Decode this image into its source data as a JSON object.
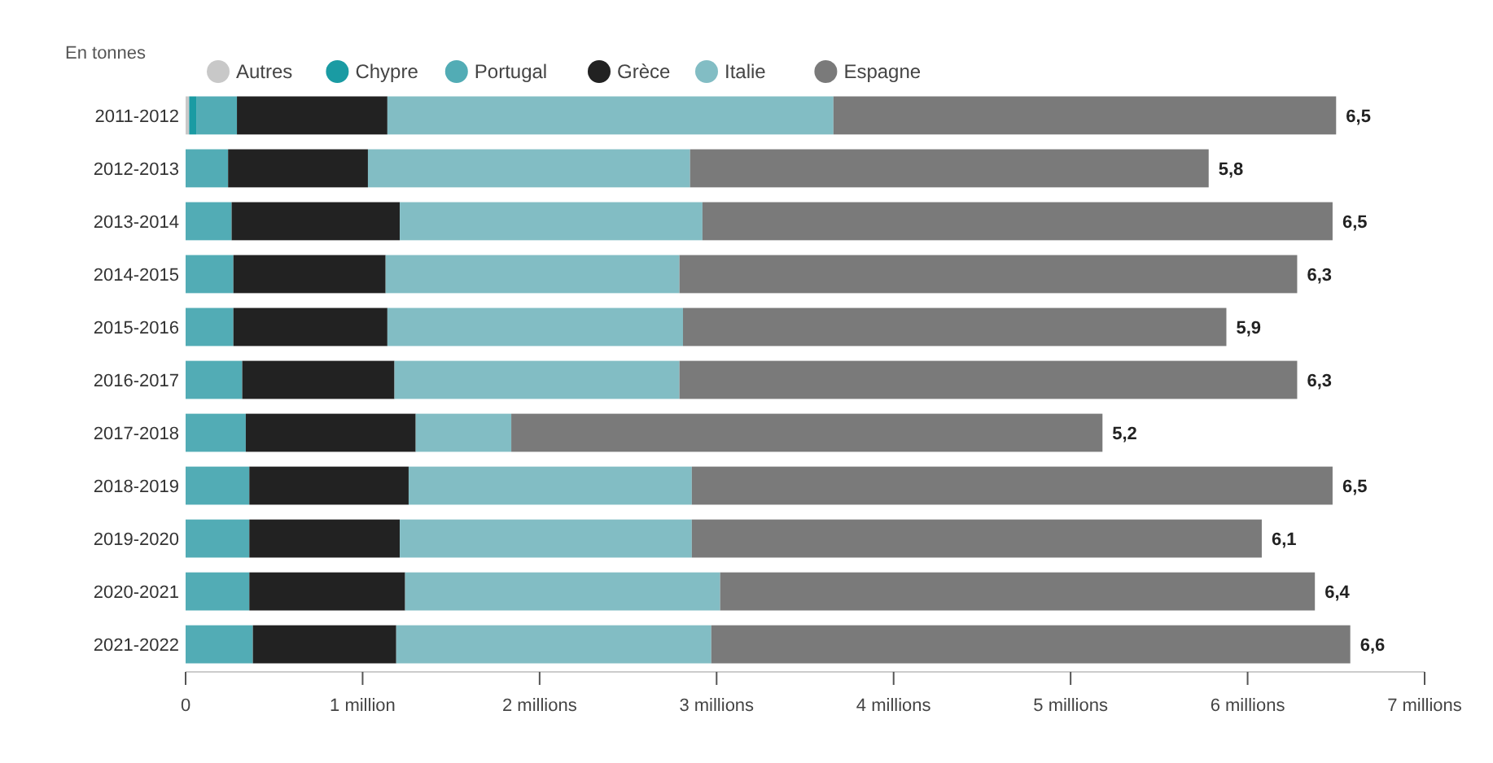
{
  "chart_data": {
    "type": "bar",
    "orientation": "horizontal",
    "stacked": true,
    "subtitle": "En tonnes",
    "categories": [
      "2011-2012",
      "2012-2013",
      "2013-2014",
      "2014-2015",
      "2015-2016",
      "2016-2017",
      "2017-2018",
      "2018-2019",
      "2019-2020",
      "2020-2021",
      "2021-2022"
    ],
    "series": [
      {
        "name": "Autres",
        "color": "#c8c8c8",
        "values": [
          0.02,
          null,
          null,
          null,
          null,
          null,
          null,
          null,
          null,
          null,
          null
        ]
      },
      {
        "name": "Chypre",
        "color": "#1a9ba3",
        "values": [
          0.04,
          null,
          null,
          null,
          null,
          null,
          null,
          null,
          null,
          null,
          null
        ]
      },
      {
        "name": "Portugal",
        "color": "#52acb5",
        "values": [
          0.23,
          0.24,
          0.26,
          0.27,
          0.27,
          0.32,
          0.34,
          0.36,
          0.36,
          0.36,
          0.38
        ]
      },
      {
        "name": "Grèce",
        "color": "#222222",
        "values": [
          0.85,
          0.79,
          0.95,
          0.86,
          0.87,
          0.86,
          0.96,
          0.9,
          0.85,
          0.88,
          0.81
        ]
      },
      {
        "name": "Italie",
        "color": "#82bdc4",
        "values": [
          2.52,
          1.82,
          1.71,
          1.66,
          1.67,
          1.61,
          0.54,
          1.6,
          1.65,
          1.78,
          1.78
        ]
      },
      {
        "name": "Espagne",
        "color": "#7a7a7a",
        "values": [
          2.84,
          2.93,
          3.56,
          3.49,
          3.07,
          3.49,
          3.34,
          3.62,
          3.22,
          3.36,
          3.61
        ]
      }
    ],
    "totals": [
      "6,5",
      "5,8",
      "6,5",
      "6,3",
      "5,9",
      "6,3",
      "5,2",
      "6,5",
      "6,1",
      "6,4",
      "6,6"
    ],
    "xlim": [
      0,
      7
    ],
    "xticks": [
      0,
      {
        "value": 1,
        "label": "1 million"
      },
      {
        "value": 2,
        "label": "2 millions"
      },
      {
        "value": 3,
        "label": "3 millions"
      },
      {
        "value": 4,
        "label": "4 millions"
      },
      {
        "value": 5,
        "label": "5 millions"
      },
      {
        "value": 6,
        "label": "6 millions"
      },
      {
        "value": 7,
        "label": "7 millions"
      }
    ],
    "grid": false,
    "legend": "top left"
  }
}
